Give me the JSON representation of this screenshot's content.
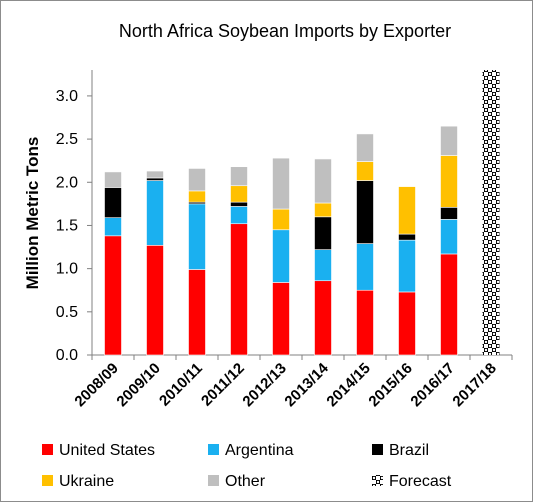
{
  "chart_data": {
    "type": "bar",
    "stacked": true,
    "title": "North Africa Soybean Imports by Exporter",
    "ylabel": "Million Metric Tons",
    "xlabel": "",
    "ylim": [
      0,
      3.3
    ],
    "yticks": [
      "0.0",
      "0.5",
      "1.0",
      "1.5",
      "2.0",
      "2.5",
      "3.0"
    ],
    "grid": false,
    "legend_position": "bottom",
    "categories": [
      "2008/09",
      "2009/10",
      "2010/11",
      "2011/12",
      "2012/13",
      "2013/14",
      "2014/15",
      "2015/16",
      "2016/17",
      "2017/18"
    ],
    "series": [
      {
        "name": "United States",
        "color": "#ff0000",
        "values": [
          1.38,
          1.27,
          0.99,
          1.52,
          0.84,
          0.86,
          0.75,
          0.73,
          1.17,
          0
        ]
      },
      {
        "name": "Argentina",
        "color": "#1ab0f0",
        "values": [
          0.21,
          0.75,
          0.76,
          0.2,
          0.61,
          0.36,
          0.54,
          0.6,
          0.4,
          0
        ]
      },
      {
        "name": "Brazil",
        "color": "#000000",
        "values": [
          0.35,
          0.03,
          0.02,
          0.05,
          0.0,
          0.38,
          0.73,
          0.07,
          0.14,
          0
        ]
      },
      {
        "name": "Ukraine",
        "color": "#ffc000",
        "values": [
          0.0,
          0.0,
          0.13,
          0.19,
          0.24,
          0.16,
          0.22,
          0.55,
          0.6,
          0
        ]
      },
      {
        "name": "Other",
        "color": "#bfbfbf",
        "values": [
          0.18,
          0.08,
          0.26,
          0.22,
          0.59,
          0.51,
          0.32,
          0.0,
          0.34,
          0
        ]
      }
    ],
    "forecast": {
      "name": "Forecast",
      "category": "2017/18",
      "value": 3.3
    },
    "legend": [
      "United States",
      "Argentina",
      "Brazil",
      "Ukraine",
      "Other",
      "Forecast"
    ]
  }
}
